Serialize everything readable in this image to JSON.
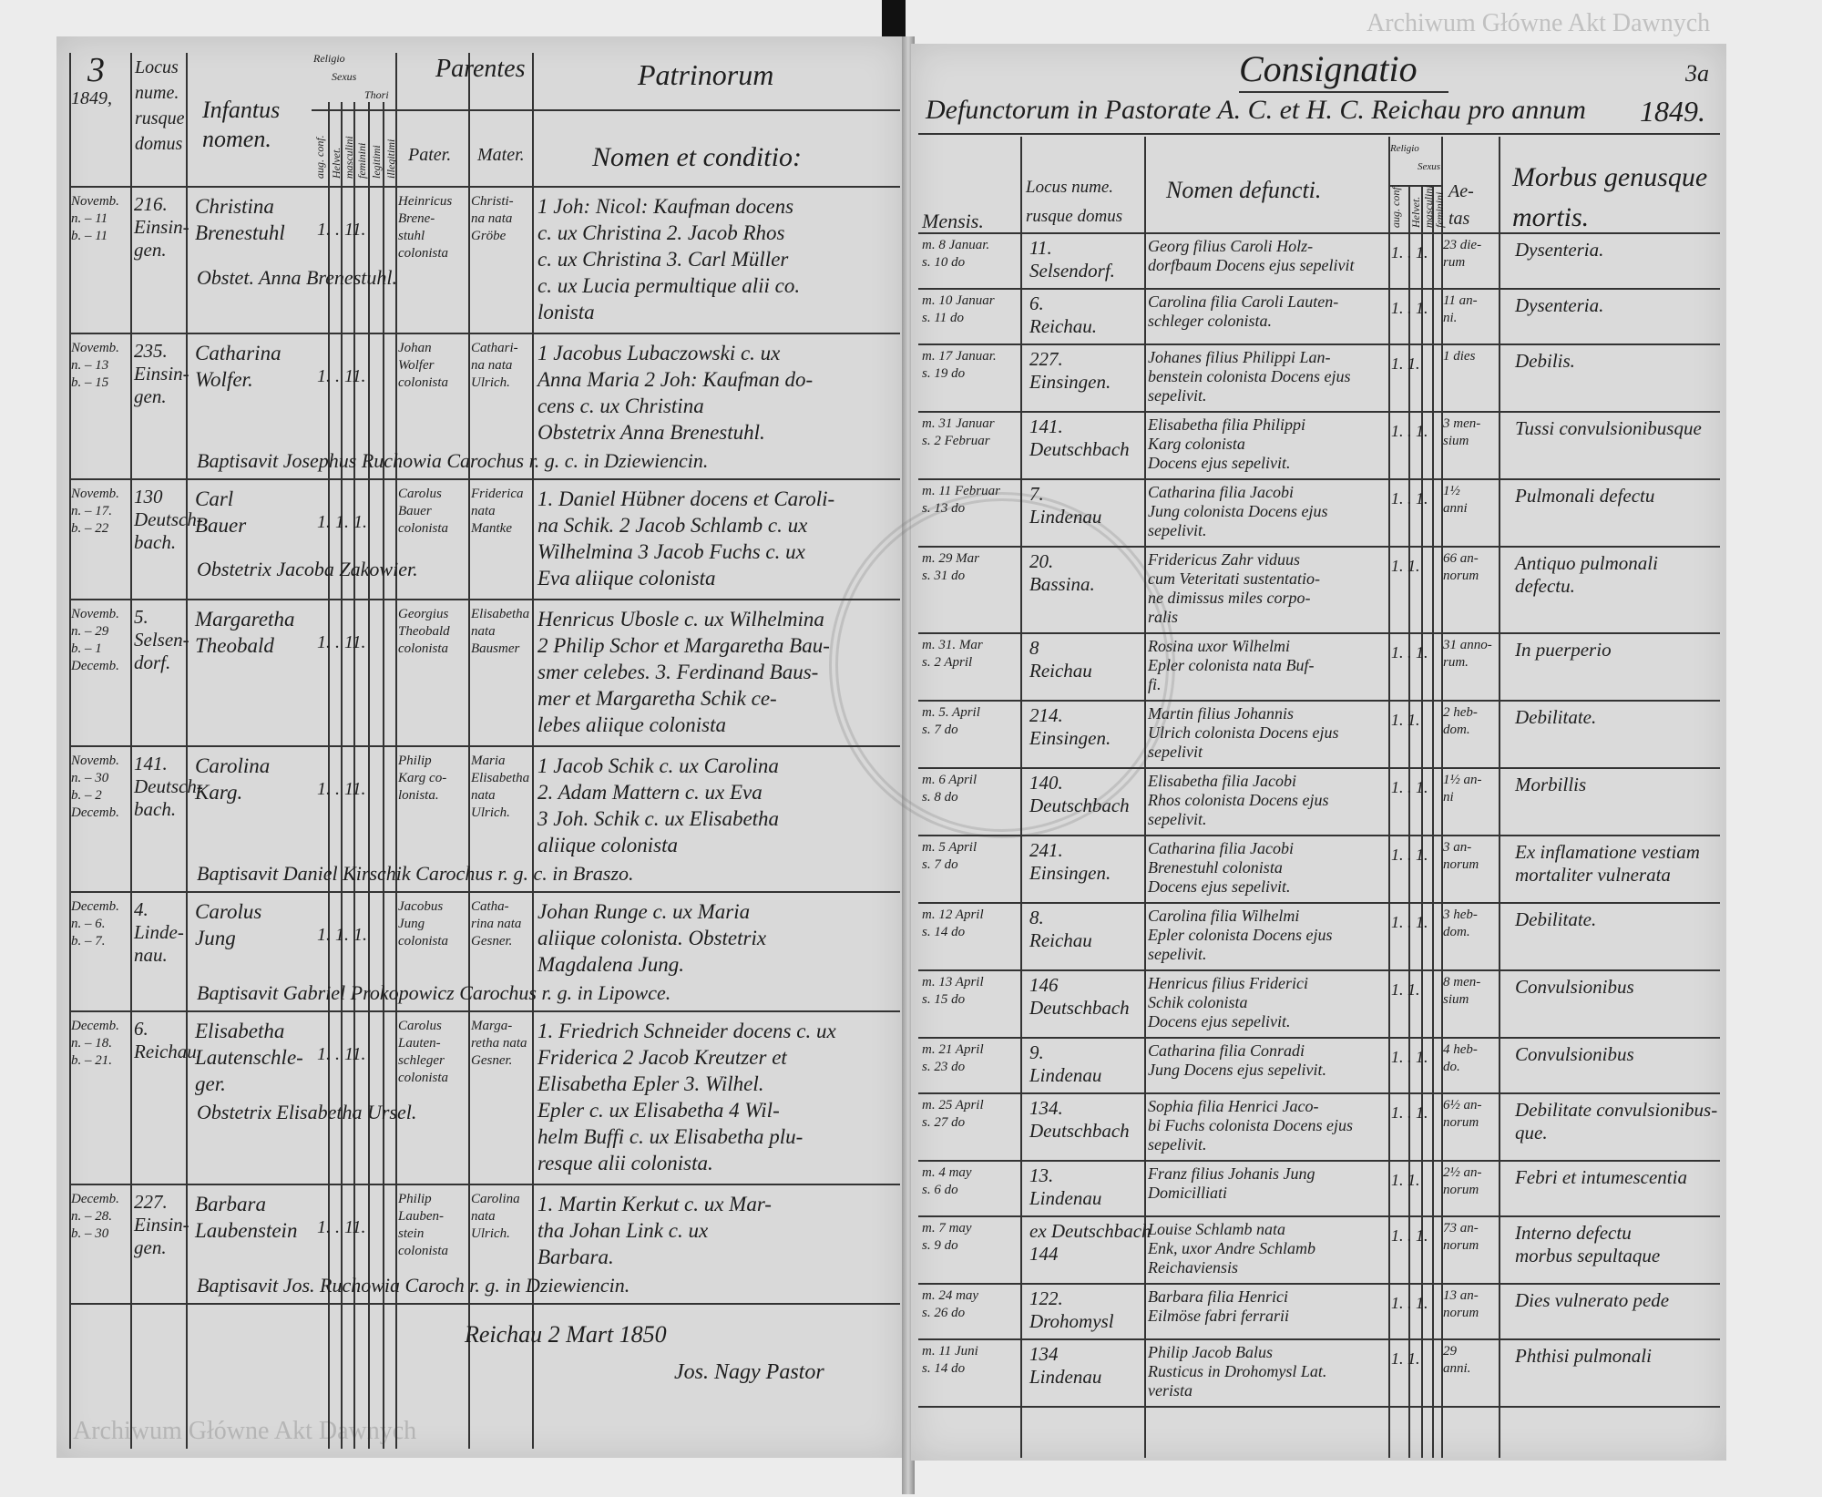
{
  "left": {
    "page_number": "3",
    "year": "1849,",
    "headers": {
      "date": "",
      "locus": [
        "Locus",
        "nume.",
        "rusque",
        "domus"
      ],
      "infans": [
        "Infantus",
        "nomen."
      ],
      "religio": "Religio",
      "sexus": "Sexus",
      "thori": "Thori",
      "sub_cols": [
        "aug. conf.",
        "Helvet.",
        "masculini",
        "feminini",
        "legitimi",
        "illegitimi"
      ],
      "parentes": "Parentes",
      "pater": "Pater.",
      "mater": "Mater.",
      "patrini": "Patrinorum",
      "nomen_conditio": "Nomen et conditio:"
    },
    "entries": [
      {
        "date": [
          "Novemb.",
          "n. – 11",
          "b. – 11"
        ],
        "locus": [
          "216.",
          "Einsin-",
          "gen."
        ],
        "infans": [
          "Christina",
          "Brenestuhl"
        ],
        "marks": "1. . 11.",
        "pater": [
          "Heinricus",
          "Brene-",
          "stuhl",
          "colonista"
        ],
        "mater": [
          "Christi-",
          "na nata",
          "Gröbe"
        ],
        "patrini": [
          "1 Joh: Nicol: Kaufman docens",
          "c. ux Christina 2. Jacob Rhos",
          "c. ux Christina 3. Carl Müller",
          "c. ux Lucia permultique alii co.",
          "lonista"
        ],
        "note": "Obstet. Anna Brenestuhl."
      },
      {
        "date": [
          "Novemb.",
          "n. – 13",
          "b. – 15"
        ],
        "locus": [
          "235.",
          "Einsin-",
          "gen."
        ],
        "infans": [
          "Catharina",
          "Wolfer."
        ],
        "marks": "1. . 11.",
        "pater": [
          "Johan",
          "Wolfer",
          "colonista"
        ],
        "mater": [
          "Cathari-",
          "na nata",
          "Ulrich."
        ],
        "patrini": [
          "1 Jacobus Lubaczowski c. ux",
          "Anna Maria 2 Joh: Kaufman do-",
          "cens c. ux Christina",
          "Obstetrix Anna Brenestuhl."
        ],
        "note": "Baptisavit Josephus Ruchowia Carochus r. g. c. in Dziewiencin."
      },
      {
        "date": [
          "Novemb.",
          "n. – 17.",
          "b. – 22"
        ],
        "locus": [
          "130",
          "Deutsch-",
          "bach."
        ],
        "infans": [
          "Carl",
          "Bauer"
        ],
        "marks": "1. 1. 1.",
        "pater": [
          "Carolus",
          "Bauer",
          "colonista"
        ],
        "mater": [
          "Friderica",
          "nata",
          "Mantke"
        ],
        "patrini": [
          "1. Daniel Hübner docens et Caroli-",
          "na Schik. 2 Jacob Schlamb c. ux",
          "Wilhelmina 3 Jacob Fuchs c. ux",
          "Eva aliique colonista"
        ],
        "note": "Obstetrix Jacoba Zakowier."
      },
      {
        "date": [
          "Novemb.",
          "n. – 29",
          "b. – 1",
          "Decemb."
        ],
        "locus": [
          "5.",
          "Selsen-",
          "dorf."
        ],
        "infans": [
          "Margaretha",
          "Theobald"
        ],
        "marks": "1. . 11.",
        "pater": [
          "Georgius",
          "Theobald",
          "colonista"
        ],
        "mater": [
          "Elisabetha",
          "nata",
          "Bausmer"
        ],
        "patrini": [
          "Henricus Ubosle c. ux Wilhelmina",
          "2 Philip Schor et Margaretha Bau-",
          "smer celebes. 3. Ferdinand Baus-",
          "mer et Margaretha Schik ce-",
          "lebes aliique colonista"
        ],
        "note": ""
      },
      {
        "date": [
          "Novemb.",
          "n. – 30",
          "b. – 2",
          "Decemb."
        ],
        "locus": [
          "141.",
          "Deutsch-",
          "bach."
        ],
        "infans": [
          "Carolina",
          "Karg."
        ],
        "marks": "1. . 11.",
        "pater": [
          "Philip",
          "Karg co-",
          "lonista."
        ],
        "mater": [
          "Maria",
          "Elisabetha",
          "nata",
          "Ulrich."
        ],
        "patrini": [
          "1 Jacob Schik c. ux Carolina",
          "2. Adam Mattern c. ux Eva",
          "3 Joh. Schik c. ux Elisabetha",
          "aliique colonista"
        ],
        "note": "Baptisavit Daniel Kirschik Carochus r. g. c. in Braszo."
      },
      {
        "date": [
          "Decemb.",
          "n. – 6.",
          "b. – 7."
        ],
        "locus": [
          "4.",
          "Linde-",
          "nau."
        ],
        "infans": [
          "Carolus",
          "Jung"
        ],
        "marks": "1. 1. 1.",
        "pater": [
          "Jacobus",
          "Jung",
          "colonista"
        ],
        "mater": [
          "Catha-",
          "rina nata",
          "Gesner."
        ],
        "patrini": [
          "Johan Runge c. ux Maria",
          "aliique colonista. Obstetrix",
          "Magdalena Jung."
        ],
        "note": "Baptisavit Gabriel Prokopowicz Carochus r. g. in Lipowce."
      },
      {
        "date": [
          "Decemb.",
          "n. – 18.",
          "b. – 21."
        ],
        "locus": [
          "6.",
          "Reichau."
        ],
        "infans": [
          "Elisabetha",
          "Lautenschle-",
          "ger."
        ],
        "marks": "1. . 11.",
        "pater": [
          "Carolus",
          "Lauten-",
          "schleger",
          "colonista"
        ],
        "mater": [
          "Marga-",
          "retha nata",
          "Gesner."
        ],
        "patrini": [
          "1. Friedrich Schneider docens c. ux",
          "Friderica 2 Jacob Kreutzer et",
          "Elisabetha Epler 3. Wilhel.",
          "Epler c. ux Elisabetha 4 Wil-",
          "helm Buffi c. ux Elisabetha plu-",
          "resque alii colonista."
        ],
        "note": "Obstetrix Elisabetha Ursel."
      },
      {
        "date": [
          "Decemb.",
          "n. – 28.",
          "b. – 30"
        ],
        "locus": [
          "227.",
          "Einsin-",
          "gen."
        ],
        "infans": [
          "Barbara",
          "Laubenstein"
        ],
        "marks": "1. . 11.",
        "pater": [
          "Philip",
          "Lauben-",
          "stein",
          "colonista"
        ],
        "mater": [
          "Carolina",
          "nata",
          "Ulrich."
        ],
        "patrini": [
          "1. Martin Kerkut c. ux Mar-",
          "tha Johan Link c. ux",
          "Barbara."
        ],
        "note": "Baptisavit Jos. Ruchowia Caroch r. g. in Dziewiencin."
      }
    ],
    "footer": {
      "place_date": "Reichau 2 Mart 1850",
      "signature": "Jos. Nagy Pastor"
    }
  },
  "right": {
    "page_number": "3a",
    "title": "Consignatio",
    "subtitle": "Defunctorum in Pastorate A. C. et H. C. Reichau pro annum",
    "year": "1849.",
    "headers": {
      "mensis": "Mensis.",
      "locus": [
        "Locus nume.",
        "rusque domus"
      ],
      "nomen": "Nomen defuncti.",
      "religio": "Religio",
      "sexus": "Sexus",
      "sub_cols": [
        "aug. conf.",
        "Helvet.",
        "masculini",
        "feminini"
      ],
      "aetas": [
        "Ae-",
        "tas"
      ],
      "morbus": [
        "Morbus genusque",
        "mortis."
      ]
    },
    "entries": [
      {
        "mensis": [
          "m. 8 Januar.",
          "s. 10 do"
        ],
        "locus": [
          "11.",
          "Selsendorf."
        ],
        "nomen": [
          "Georg filius Caroli Holz-",
          "dorfbaum Docens ejus sepelivit"
        ],
        "marks": "1. . 1.",
        "aetas": [
          "23 die-",
          "rum"
        ],
        "morbus": [
          "Dysenteria."
        ]
      },
      {
        "mensis": [
          "m. 10 Januar",
          "s. 11 do"
        ],
        "locus": [
          "6.",
          "Reichau."
        ],
        "nomen": [
          "Carolina filia Caroli Lauten-",
          "schleger colonista."
        ],
        "marks": "1. . 1.",
        "aetas": [
          "11 an-",
          "ni."
        ],
        "morbus": [
          "Dysenteria."
        ]
      },
      {
        "mensis": [
          "m. 17 Januar.",
          "s. 19 do"
        ],
        "locus": [
          "227.",
          "Einsingen."
        ],
        "nomen": [
          "Johanes filius Philippi Lan-",
          "benstein colonista Docens ejus sepelivit."
        ],
        "marks": "1. 1.",
        "aetas": [
          "1 dies"
        ],
        "morbus": [
          "Debilis."
        ]
      },
      {
        "mensis": [
          "m. 31 Januar",
          "s. 2 Februar"
        ],
        "locus": [
          "141.",
          "Deutschbach"
        ],
        "nomen": [
          "Elisabetha filia Philippi",
          "Karg colonista",
          "Docens ejus sepelivit."
        ],
        "marks": "1. . 1.",
        "aetas": [
          "3 men-",
          "sium"
        ],
        "morbus": [
          "Tussi convulsionibusque"
        ]
      },
      {
        "mensis": [
          "m. 11 Februar",
          "s. 13 do"
        ],
        "locus": [
          "7.",
          "Lindenau"
        ],
        "nomen": [
          "Catharina filia Jacobi",
          "Jung colonista Docens ejus sepelivit."
        ],
        "marks": "1. . 1.",
        "aetas": [
          "1½",
          "anni"
        ],
        "morbus": [
          "Pulmonali defectu"
        ]
      },
      {
        "mensis": [
          "m. 29 Mar",
          "s. 31 do"
        ],
        "locus": [
          "20.",
          "Bassina."
        ],
        "nomen": [
          "Fridericus Zahr viduus",
          "cum Veteritati sustentatio-",
          "ne dimissus miles corpo-",
          "ralis"
        ],
        "marks": "1. 1.",
        "aetas": [
          "66 an-",
          "norum"
        ],
        "morbus": [
          "Antiquo pulmonali",
          "defectu."
        ]
      },
      {
        "mensis": [
          "m. 31. Mar",
          "s. 2 April"
        ],
        "locus": [
          "8",
          "Reichau"
        ],
        "nomen": [
          "Rosina uxor Wilhelmi",
          "Epler colonista nata Buf-",
          "fi."
        ],
        "marks": "1. . 1.",
        "aetas": [
          "31 anno-",
          "rum."
        ],
        "morbus": [
          "In puerperio"
        ]
      },
      {
        "mensis": [
          "m. 5. April",
          "s. 7 do"
        ],
        "locus": [
          "214.",
          "Einsingen."
        ],
        "nomen": [
          "Martin filius Johannis",
          "Ulrich colonista Docens ejus sepelivit"
        ],
        "marks": "1. 1.",
        "aetas": [
          "2 heb-",
          "dom."
        ],
        "morbus": [
          "Debilitate."
        ]
      },
      {
        "mensis": [
          "m. 6 April",
          "s. 8 do"
        ],
        "locus": [
          "140.",
          "Deutschbach"
        ],
        "nomen": [
          "Elisabetha filia Jacobi",
          "Rhos colonista Docens ejus sepelivit."
        ],
        "marks": "1. . 1.",
        "aetas": [
          "1½ an-",
          "ni"
        ],
        "morbus": [
          "Morbillis"
        ]
      },
      {
        "mensis": [
          "m. 5 April",
          "s. 7 do"
        ],
        "locus": [
          "241.",
          "Einsingen."
        ],
        "nomen": [
          "Catharina filia Jacobi",
          "Brenestuhl colonista",
          "Docens ejus sepelivit."
        ],
        "marks": "1. . 1.",
        "aetas": [
          "3 an-",
          "norum"
        ],
        "morbus": [
          "Ex inflamatione vestiam",
          "mortaliter vulnerata"
        ]
      },
      {
        "mensis": [
          "m. 12 April",
          "s. 14 do"
        ],
        "locus": [
          "8.",
          "Reichau"
        ],
        "nomen": [
          "Carolina filia Wilhelmi",
          "Epler colonista Docens ejus sepelivit."
        ],
        "marks": "1. . 1.",
        "aetas": [
          "3 heb-",
          "dom."
        ],
        "morbus": [
          "Debilitate."
        ]
      },
      {
        "mensis": [
          "m. 13 April",
          "s. 15 do"
        ],
        "locus": [
          "146",
          "Deutschbach"
        ],
        "nomen": [
          "Henricus filius Friderici",
          "Schik colonista",
          "Docens ejus sepelivit."
        ],
        "marks": "1. 1.",
        "aetas": [
          "8 men-",
          "sium"
        ],
        "morbus": [
          "Convulsionibus"
        ]
      },
      {
        "mensis": [
          "m. 21 April",
          "s. 23 do"
        ],
        "locus": [
          "9.",
          "Lindenau"
        ],
        "nomen": [
          "Catharina filia Conradi",
          "Jung Docens ejus sepelivit."
        ],
        "marks": "1. . 1.",
        "aetas": [
          "4 heb-",
          "do."
        ],
        "morbus": [
          "Convulsionibus"
        ]
      },
      {
        "mensis": [
          "m. 25 April",
          "s. 27 do"
        ],
        "locus": [
          "134.",
          "Deutschbach"
        ],
        "nomen": [
          "Sophia filia Henrici Jaco-",
          "bi Fuchs colonista Docens ejus sepelivit."
        ],
        "marks": "1. . 1.",
        "aetas": [
          "6½ an-",
          "norum"
        ],
        "morbus": [
          "Debilitate convulsionibus-",
          "que."
        ]
      },
      {
        "mensis": [
          "m. 4 may",
          "s. 6 do"
        ],
        "locus": [
          "13.",
          "Lindenau"
        ],
        "nomen": [
          "Franz filius Johanis Jung",
          "Domicilliati"
        ],
        "marks": "1. 1.",
        "aetas": [
          "2½ an-",
          "norum"
        ],
        "morbus": [
          "Febri et intumescentia"
        ]
      },
      {
        "mensis": [
          "m. 7 may",
          "s. 9 do"
        ],
        "locus": [
          "ex Deutschbach",
          "144"
        ],
        "nomen": [
          "Louise Schlamb nata",
          "Enk, uxor Andre Schlamb Reichaviensis"
        ],
        "marks": "1. . 1.",
        "aetas": [
          "73 an-",
          "norum"
        ],
        "morbus": [
          "Interno defectu",
          "morbus sepultaque"
        ]
      },
      {
        "mensis": [
          "m. 24 may",
          "s. 26 do"
        ],
        "locus": [
          "122.",
          "Drohomysl"
        ],
        "nomen": [
          "Barbara filia Henrici",
          "Eilmöse fabri ferrarii"
        ],
        "marks": "1. . 1.",
        "aetas": [
          "13 an-",
          "norum"
        ],
        "morbus": [
          "Dies vulnerato pede"
        ]
      },
      {
        "mensis": [
          "m. 11 Juni",
          "s. 14 do"
        ],
        "locus": [
          "134",
          "Lindenau"
        ],
        "nomen": [
          "Philip Jacob Balus",
          "Rusticus in Drohomysl Lat.",
          "verista"
        ],
        "marks": "1. 1.",
        "aetas": [
          "29",
          "anni."
        ],
        "morbus": [
          "Phthisi pulmonali"
        ]
      }
    ]
  },
  "watermark": "Archiwum Główne Akt Dawnych",
  "stamp_text": "Archiwum Główne Akt Dawnych"
}
